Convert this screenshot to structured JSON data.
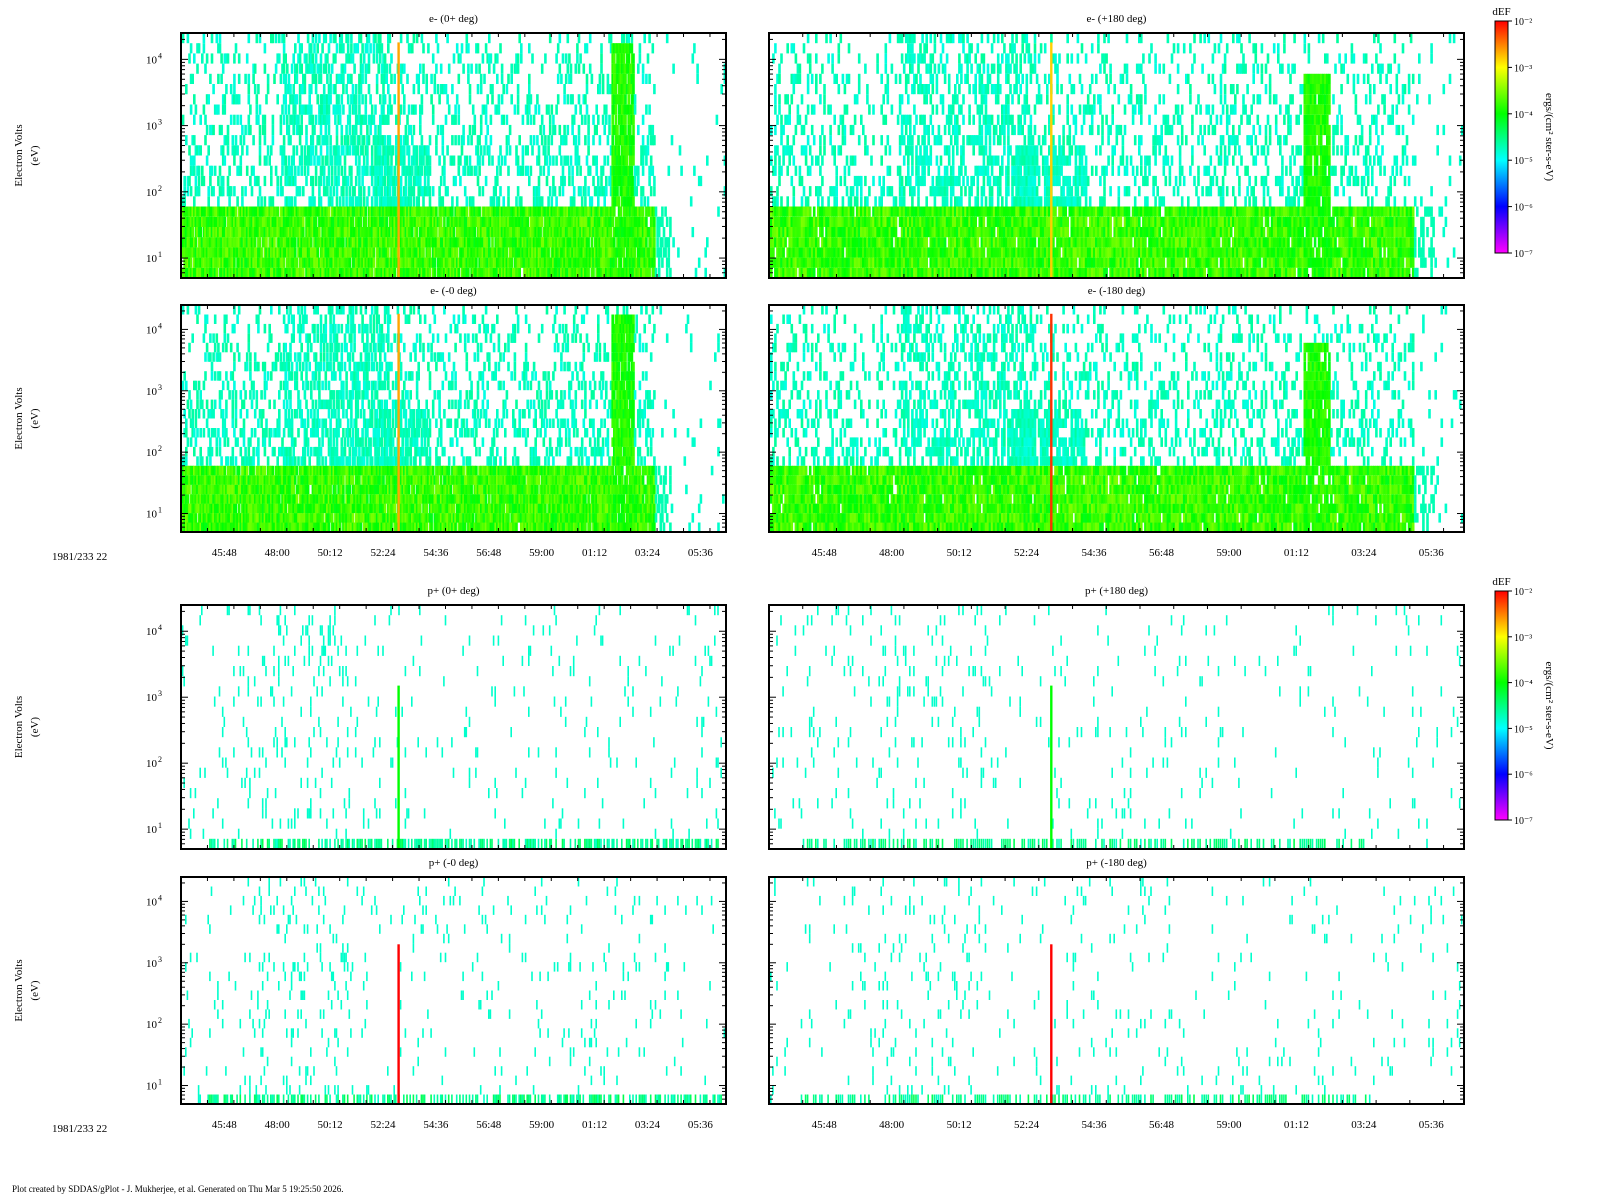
{
  "chart_data": {
    "type": "heatmap",
    "time_prefix": "1981/233 22",
    "time_ticks": [
      "45:48",
      "48:00",
      "50:12",
      "52:24",
      "54:36",
      "56:48",
      "59:00",
      "01:12",
      "03:24",
      "05:36"
    ],
    "y_axis": {
      "label": "Electron Volts",
      "unit": "(eV)",
      "scale": "log",
      "range_eV": [
        5,
        25000
      ],
      "tick_values": [
        10,
        100,
        1000,
        10000
      ]
    },
    "colorbar": {
      "title": "dEF",
      "unit": "ergs/(cm² ster-s-eV)",
      "scale": "log",
      "range": [
        1e-07,
        0.01
      ],
      "tick_labels": [
        "10⁻²",
        "10⁻³",
        "10⁻⁴",
        "10⁻⁵",
        "10⁻⁶",
        "10⁻⁷"
      ],
      "colors": [
        "#ff00ff",
        "#0000ff",
        "#00ffff",
        "#00ff00",
        "#ffff00",
        "#ff0000"
      ]
    },
    "panels": [
      {
        "title": "e- (0+ deg)",
        "species": "electron",
        "background_band_eV": [
          5,
          70
        ],
        "spike_time": "53:00",
        "spike_color": "#ffa500",
        "burst_time": "02:20",
        "burst_top_eV": 15000
      },
      {
        "title": "e- (+180 deg)",
        "species": "electron",
        "background_band_eV": [
          5,
          70
        ],
        "spike_time": "53:10",
        "spike_color": "#ffd000",
        "burst_time": "01:50",
        "burst_top_eV": 6000
      },
      {
        "title": "e- (-0 deg)",
        "species": "electron",
        "background_band_eV": [
          5,
          70
        ],
        "spike_time": "53:00",
        "spike_color": "#ffa500",
        "burst_time": "02:20",
        "burst_top_eV": 15000
      },
      {
        "title": "e- (-180 deg)",
        "species": "electron",
        "background_band_eV": [
          5,
          70
        ],
        "spike_time": "53:10",
        "spike_color": "#ff3000",
        "burst_time": "01:50",
        "burst_top_eV": 6000
      },
      {
        "title": "p+ (0+ deg)",
        "species": "proton",
        "background_band_eV": [
          5,
          8
        ],
        "spike_time": "53:00",
        "spike_color": "#00ff00"
      },
      {
        "title": "p+ (+180 deg)",
        "species": "proton",
        "background_band_eV": [
          5,
          8
        ],
        "spike_time": "53:10",
        "spike_color": "#00ff00"
      },
      {
        "title": "p+ (-0 deg)",
        "species": "proton",
        "background_band_eV": [
          5,
          8
        ],
        "spike_time": "53:00",
        "spike_color": "#ff0000"
      },
      {
        "title": "p+ (-180 deg)",
        "species": "proton",
        "background_band_eV": [
          5,
          8
        ],
        "spike_time": "53:10",
        "spike_color": "#ff0000"
      }
    ]
  },
  "footer": "Plot created by SDDAS/gPlot - J. Mukherjee, et al.  Generated on Thu Mar 5 19:25:50 2026."
}
